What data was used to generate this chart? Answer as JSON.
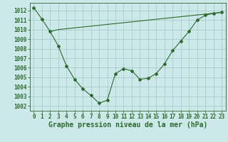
{
  "line1_x": [
    0,
    1,
    2,
    3,
    4,
    5,
    6,
    7,
    8,
    9,
    10,
    11,
    12,
    13,
    14,
    15,
    16,
    17,
    18,
    19,
    20,
    21,
    22,
    23
  ],
  "line1_y": [
    1012.3,
    1011.1,
    1009.8,
    1008.3,
    1006.2,
    1004.8,
    1003.8,
    1003.1,
    1002.3,
    1002.6,
    1005.4,
    1005.9,
    1005.7,
    1004.8,
    1004.9,
    1005.4,
    1006.4,
    1007.8,
    1008.8,
    1009.8,
    1011.0,
    1011.5,
    1011.7,
    1011.8
  ],
  "line2_x": [
    2,
    3,
    23
  ],
  "line2_y": [
    1009.8,
    1010.0,
    1011.8
  ],
  "line_color": "#2d6a2d",
  "bg_color": "#cce8e8",
  "grid_color": "#aacccc",
  "xlabel": "Graphe pression niveau de la mer (hPa)",
  "ylim": [
    1001.5,
    1012.8
  ],
  "xlim": [
    -0.5,
    23.5
  ],
  "yticks": [
    1002,
    1003,
    1004,
    1005,
    1006,
    1007,
    1008,
    1009,
    1010,
    1011,
    1012
  ],
  "xticks": [
    0,
    1,
    2,
    3,
    4,
    5,
    6,
    7,
    8,
    9,
    10,
    11,
    12,
    13,
    14,
    15,
    16,
    17,
    18,
    19,
    20,
    21,
    22,
    23
  ],
  "tick_fontsize": 5.5,
  "xlabel_fontsize": 7.0
}
